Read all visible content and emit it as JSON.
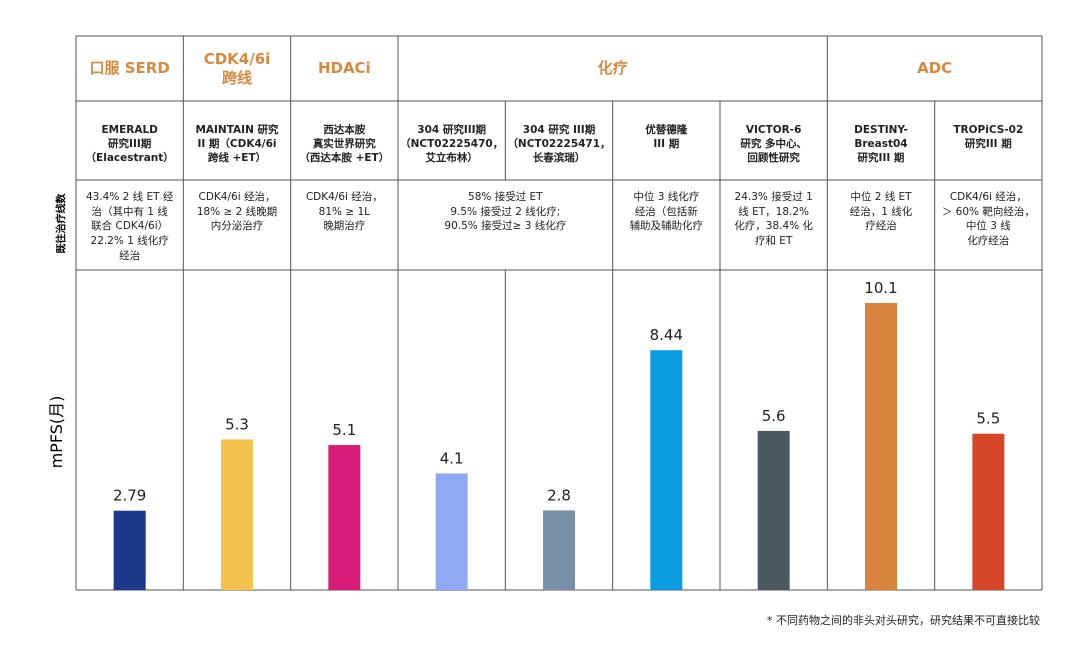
{
  "chart_data": {
    "type": "bar",
    "groups": [
      "口服 SERD",
      "CDK4/6i\n跨线",
      "HDACi",
      "化疗",
      "ADC"
    ],
    "categories": [
      "EMERALD\n研究III期\n（Elacestrant）",
      "MAINTAIN 研究\nII 期（CDK4/6i\n跨线 +ET）",
      "西达本胺\n真实世界研究\n（西达本胺 +ET）",
      "304 研究III期\n（NCT02225470，\n艾立布林）",
      "304 研究 III期\n（NCT02225471，\n长春滨瑞）",
      "优替德隆\nIII 期",
      "VICTOR-6\n研究 多中心、\n回顾性研究",
      "DESTINY-\nBreast04\n研究III 期",
      "TROPiCS-02\n研究III 期"
    ],
    "row_label": "既往治疗线数",
    "prior_therapy": [
      "43.4% 2 线 ET 经\n治（其中有 1 线\n联合 CDK4/6i）\n22.2% 1 线化疗\n经治",
      "CDK4/6i 经治，\n18% ≥ 2 线晚期\n内分泌治疗",
      "CDK4/6i 经治，\n81% ≥ 1L\n晚期治疗",
      "58% 接受过 ET\n9.5% 接受过 2 线化疗;\n90.5% 接受过≥ 3 线化疗",
      "中位 3 线化疗\n经治（包括新\n辅助及辅助化疗",
      "24.3% 接受过 1\n线 ET，18.2%\n化疗，38.4% 化\n疗和 ET",
      "中位 2 线 ET\n经治，1 线化\n疗经治",
      "CDK4/6i 经治，\n＞ 60% 靶向经治，\n中位 3 线\n化疗经治"
    ],
    "ylabel": "mPFS(月)",
    "values": [
      2.79,
      5.3,
      5.1,
      4.1,
      2.8,
      8.44,
      5.6,
      10.1,
      5.5
    ],
    "colors": [
      "#1b3a8a",
      "#f2c14e",
      "#d81b78",
      "#8fa9f5",
      "#7891a8",
      "#0b9de0",
      "#4a5a60",
      "#d8843f",
      "#d6472a"
    ],
    "footnote": "* 不同药物之间的非头对头研究，研究结果不可直接比较"
  }
}
